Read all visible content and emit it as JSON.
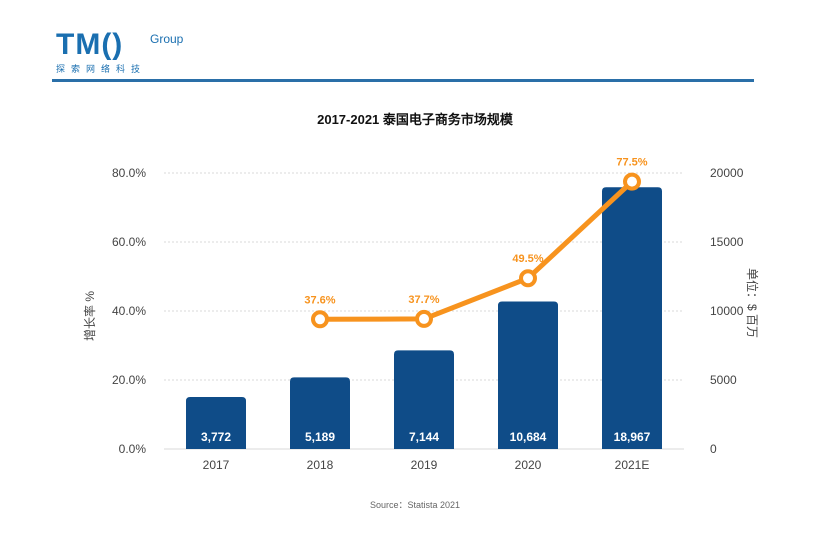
{
  "header": {
    "logo_main": "TM()",
    "logo_group": "Group",
    "logo_sub": "探索网络科技"
  },
  "colors": {
    "bar": "#0f4c88",
    "line": "#f7931e",
    "rule": "#2a6fa8",
    "grid": "#d9d9d9"
  },
  "chart_data": {
    "type": "bar",
    "title": "2017-2021 泰国电子商务市场规模",
    "categories": [
      "2017",
      "2018",
      "2019",
      "2020",
      "2021E"
    ],
    "series": [
      {
        "kind": "bar",
        "axis": "right",
        "values": [
          3772,
          5189,
          7144,
          10684,
          18967
        ],
        "labels": [
          "3,772",
          "5,189",
          "7,144",
          "10,684",
          "18,967"
        ]
      },
      {
        "kind": "line",
        "axis": "left",
        "values": [
          null,
          37.6,
          37.7,
          49.5,
          77.5
        ],
        "labels": [
          "",
          "37.6%",
          "37.7%",
          "49.5%",
          "77.5%"
        ]
      }
    ],
    "ylabel_left": "增长率 %",
    "ylabel_right": "单位：$ 百万",
    "ylim_left": [
      0,
      80
    ],
    "yticks_left": [
      "0.0%",
      "20.0%",
      "40.0%",
      "60.0%",
      "80.0%"
    ],
    "ylim_right": [
      0,
      20000
    ],
    "yticks_right": [
      "0",
      "5000",
      "10000",
      "15000",
      "20000"
    ],
    "grid": true
  },
  "source": "Source：Statista 2021"
}
